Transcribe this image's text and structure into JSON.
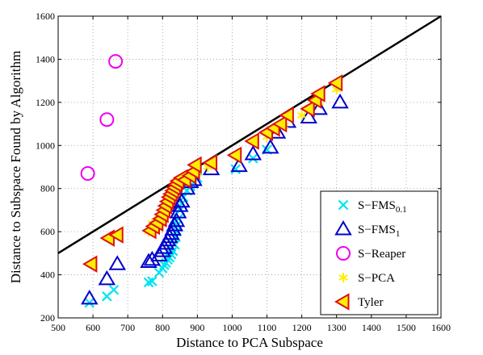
{
  "chart_data": {
    "type": "scatter",
    "xlabel": "Distance to PCA Subspace",
    "ylabel": "Distance to Subspace Found by Algorithm",
    "xlim": [
      500,
      1600
    ],
    "ylim": [
      200,
      1600
    ],
    "xticks": [
      500,
      600,
      700,
      800,
      900,
      1000,
      1100,
      1200,
      1300,
      1400,
      1500,
      1600
    ],
    "yticks": [
      200,
      400,
      600,
      800,
      1000,
      1200,
      1400,
      1600
    ],
    "grid": "dotted",
    "legend_position": "bottom-right",
    "reference_line": {
      "x": [
        500,
        1600
      ],
      "y": [
        500,
        1600
      ],
      "color": "#000000"
    },
    "series": [
      {
        "label_main": "S−FMS",
        "label_sub": "0.1",
        "marker": "x-mark",
        "color": "#00e5ee",
        "points": [
          [
            590,
            270
          ],
          [
            640,
            300
          ],
          [
            660,
            330
          ],
          [
            760,
            365
          ],
          [
            770,
            370
          ],
          [
            790,
            410
          ],
          [
            800,
            430
          ],
          [
            805,
            445
          ],
          [
            810,
            455
          ],
          [
            815,
            470
          ],
          [
            820,
            480
          ],
          [
            825,
            495
          ],
          [
            830,
            510
          ],
          [
            835,
            540
          ],
          [
            838,
            575
          ],
          [
            840,
            600
          ],
          [
            842,
            630
          ],
          [
            845,
            660
          ],
          [
            850,
            700
          ],
          [
            855,
            730
          ],
          [
            860,
            760
          ],
          [
            870,
            790
          ],
          [
            880,
            810
          ],
          [
            890,
            830
          ],
          [
            900,
            850
          ],
          [
            1010,
            890
          ],
          [
            1060,
            940
          ],
          [
            1100,
            980
          ]
        ]
      },
      {
        "label_main": "S−FMS",
        "label_sub": "1",
        "marker": "triangle-up",
        "color": "#0000cc",
        "points": [
          [
            590,
            290
          ],
          [
            640,
            380
          ],
          [
            670,
            450
          ],
          [
            760,
            460
          ],
          [
            770,
            470
          ],
          [
            790,
            490
          ],
          [
            800,
            510
          ],
          [
            805,
            525
          ],
          [
            810,
            545
          ],
          [
            815,
            560
          ],
          [
            820,
            575
          ],
          [
            825,
            590
          ],
          [
            830,
            610
          ],
          [
            835,
            630
          ],
          [
            840,
            650
          ],
          [
            845,
            690
          ],
          [
            850,
            720
          ],
          [
            855,
            740
          ],
          [
            870,
            800
          ],
          [
            880,
            830
          ],
          [
            890,
            840
          ],
          [
            940,
            890
          ],
          [
            1020,
            905
          ],
          [
            1060,
            960
          ],
          [
            1110,
            990
          ],
          [
            1130,
            1060
          ],
          [
            1160,
            1110
          ],
          [
            1220,
            1130
          ],
          [
            1250,
            1170
          ],
          [
            1310,
            1200
          ]
        ]
      },
      {
        "label_main": "S−Reaper",
        "label_sub": "",
        "marker": "circle",
        "color": "#ee00ee",
        "points": [
          [
            585,
            870
          ],
          [
            640,
            1120
          ],
          [
            665,
            1390
          ]
        ]
      },
      {
        "label_main": "S−PCA",
        "label_sub": "",
        "marker": "asterisk",
        "color": "#ffee00",
        "points": [
          [
            760,
            600
          ],
          [
            770,
            640
          ],
          [
            790,
            660
          ],
          [
            800,
            690
          ],
          [
            810,
            720
          ],
          [
            820,
            760
          ],
          [
            830,
            790
          ],
          [
            840,
            810
          ],
          [
            850,
            820
          ],
          [
            860,
            830
          ],
          [
            880,
            850
          ],
          [
            900,
            870
          ],
          [
            930,
            900
          ],
          [
            1010,
            950
          ],
          [
            1100,
            1040
          ],
          [
            1150,
            1090
          ],
          [
            1200,
            1140
          ],
          [
            1250,
            1200
          ],
          [
            1300,
            1260
          ]
        ]
      },
      {
        "label_main": "Tyler",
        "label_sub": "",
        "marker": "triangle-left",
        "color": "#dd1111",
        "fill": "#ffee00",
        "points": [
          [
            595,
            450
          ],
          [
            645,
            570
          ],
          [
            670,
            585
          ],
          [
            765,
            605
          ],
          [
            775,
            625
          ],
          [
            785,
            640
          ],
          [
            795,
            660
          ],
          [
            800,
            680
          ],
          [
            805,
            700
          ],
          [
            810,
            720
          ],
          [
            815,
            740
          ],
          [
            820,
            760
          ],
          [
            825,
            775
          ],
          [
            830,
            790
          ],
          [
            835,
            805
          ],
          [
            840,
            820
          ],
          [
            845,
            835
          ],
          [
            855,
            850
          ],
          [
            865,
            840
          ],
          [
            880,
            860
          ],
          [
            890,
            880
          ],
          [
            895,
            910
          ],
          [
            940,
            920
          ],
          [
            1010,
            955
          ],
          [
            1060,
            1020
          ],
          [
            1100,
            1060
          ],
          [
            1120,
            1080
          ],
          [
            1140,
            1100
          ],
          [
            1160,
            1140
          ],
          [
            1220,
            1170
          ],
          [
            1240,
            1210
          ],
          [
            1250,
            1240
          ],
          [
            1300,
            1290
          ]
        ]
      }
    ]
  }
}
